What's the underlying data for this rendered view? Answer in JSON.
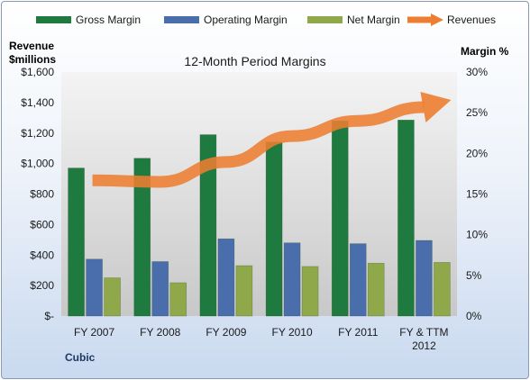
{
  "chart_data": {
    "type": "bar",
    "title": "12-Month Period Margins",
    "y_left_label": [
      "Revenue",
      "$millions"
    ],
    "y_right_label": "Margin %",
    "categories": [
      "FY 2007",
      "FY 2008",
      "FY 2009",
      "FY 2010",
      "FY 2011",
      "FY & TTM\n2012"
    ],
    "y_left_ticks": [
      "$-",
      "$200",
      "$400",
      "$600",
      "$800",
      "$1,000",
      "$1,200",
      "$1,400",
      "$1,600"
    ],
    "y_right_ticks": [
      "0%",
      "5%",
      "10%",
      "15%",
      "20%",
      "25%",
      "30%"
    ],
    "ylim_left": [
      0,
      1600
    ],
    "ylim_right": [
      0,
      30
    ],
    "grid": false,
    "legend_position": "top",
    "series": [
      {
        "name": "Gross Margin",
        "axis": "right",
        "kind": "bar",
        "color": "#1f7a3f",
        "values": [
          18.2,
          19.4,
          22.3,
          21.4,
          24.0,
          24.1
        ]
      },
      {
        "name": "Operating Margin",
        "axis": "right",
        "kind": "bar",
        "color": "#4a6eab",
        "values": [
          7.0,
          6.7,
          9.5,
          9.0,
          8.9,
          9.3
        ]
      },
      {
        "name": "Net Margin",
        "axis": "right",
        "kind": "bar",
        "color": "#8fa84a",
        "values": [
          4.7,
          4.1,
          6.2,
          6.1,
          6.5,
          6.6
        ]
      },
      {
        "name": "Revenues",
        "axis": "left",
        "kind": "trend-arrow",
        "color": "#ed7d31",
        "values": [
          890,
          880,
          1010,
          1180,
          1280,
          1370
        ]
      }
    ]
  },
  "footer": {
    "company": "Cubic"
  }
}
